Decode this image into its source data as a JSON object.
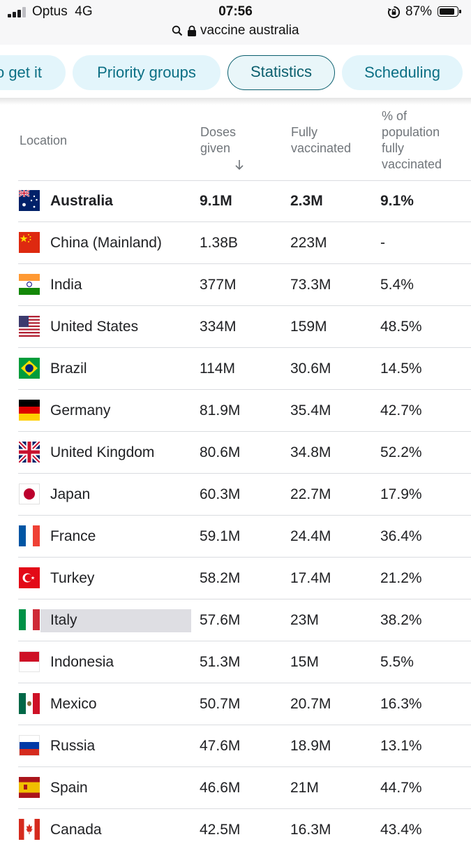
{
  "status_bar": {
    "carrier": "Optus",
    "network": "4G",
    "time": "07:56",
    "battery": "87%",
    "address": "vaccine australia"
  },
  "chips": [
    {
      "label": "o get it",
      "active": false
    },
    {
      "label": "Priority groups",
      "active": false
    },
    {
      "label": "Statistics",
      "active": true
    },
    {
      "label": "Scheduling",
      "active": false
    }
  ],
  "table": {
    "headers": {
      "location": "Location",
      "doses": [
        "Doses",
        "given"
      ],
      "fully": [
        "Fully",
        "vaccinated"
      ],
      "pct": [
        "% of",
        "population",
        "fully",
        "vaccinated"
      ]
    },
    "rows": [
      {
        "flag": "australia-flag",
        "location": "Australia",
        "doses": "9.1M",
        "fully": "2.3M",
        "pct": "9.1%",
        "bold": true
      },
      {
        "flag": "china-flag",
        "location": "China (Mainland)",
        "doses": "1.38B",
        "fully": "223M",
        "pct": "-"
      },
      {
        "flag": "india-flag",
        "location": "India",
        "doses": "377M",
        "fully": "73.3M",
        "pct": "5.4%"
      },
      {
        "flag": "united-states-flag",
        "location": "United States",
        "doses": "334M",
        "fully": "159M",
        "pct": "48.5%"
      },
      {
        "flag": "brazil-flag",
        "location": "Brazil",
        "doses": "114M",
        "fully": "30.6M",
        "pct": "14.5%"
      },
      {
        "flag": "germany-flag",
        "location": "Germany",
        "doses": "81.9M",
        "fully": "35.4M",
        "pct": "42.7%"
      },
      {
        "flag": "united-kingdom-flag",
        "location": "United Kingdom",
        "doses": "80.6M",
        "fully": "34.8M",
        "pct": "52.2%"
      },
      {
        "flag": "japan-flag",
        "location": "Japan",
        "doses": "60.3M",
        "fully": "22.7M",
        "pct": "17.9%"
      },
      {
        "flag": "france-flag",
        "location": "France",
        "doses": "59.1M",
        "fully": "24.4M",
        "pct": "36.4%"
      },
      {
        "flag": "turkey-flag",
        "location": "Turkey",
        "doses": "58.2M",
        "fully": "17.4M",
        "pct": "21.2%"
      },
      {
        "flag": "italy-flag",
        "location": "Italy",
        "doses": "57.6M",
        "fully": "23M",
        "pct": "38.2%",
        "highlighted": true
      },
      {
        "flag": "indonesia-flag",
        "location": "Indonesia",
        "doses": "51.3M",
        "fully": "15M",
        "pct": "5.5%"
      },
      {
        "flag": "mexico-flag",
        "location": "Mexico",
        "doses": "50.7M",
        "fully": "20.7M",
        "pct": "16.3%"
      },
      {
        "flag": "russia-flag",
        "location": "Russia",
        "doses": "47.6M",
        "fully": "18.9M",
        "pct": "13.1%"
      },
      {
        "flag": "spain-flag",
        "location": "Spain",
        "doses": "46.6M",
        "fully": "21M",
        "pct": "44.7%"
      },
      {
        "flag": "canada-flag",
        "location": "Canada",
        "doses": "42.5M",
        "fully": "16.3M",
        "pct": "43.4%"
      }
    ]
  },
  "colors": {
    "chip_bg": "#e3f5fb",
    "chip_text": "#0b6f84",
    "header_text": "#70757a",
    "divider": "#dadce0"
  }
}
